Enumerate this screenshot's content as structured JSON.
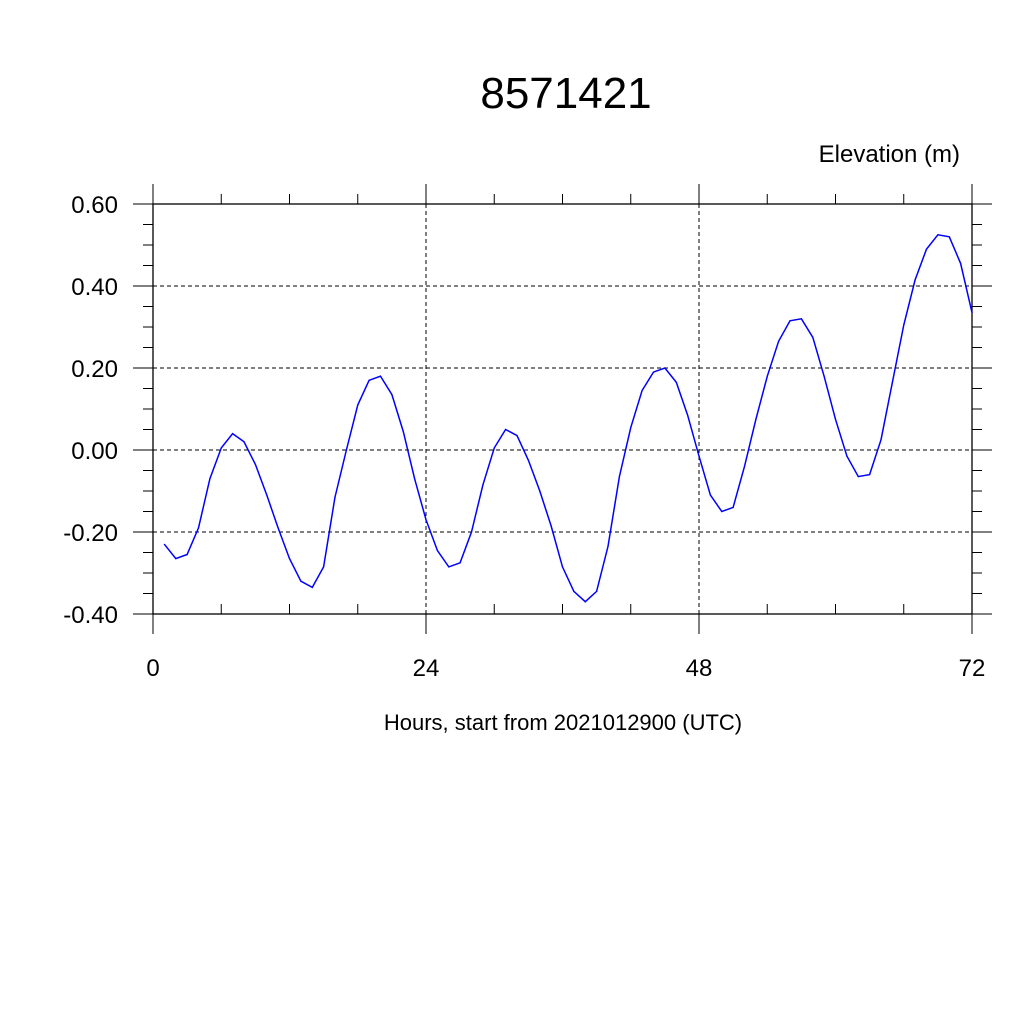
{
  "chart_data": {
    "type": "line",
    "title": "8571421",
    "ylabel": "Elevation (m)",
    "xlabel": "Hours, start from 2021012900 (UTC)",
    "xlim": [
      0,
      72
    ],
    "ylim": [
      -0.4,
      0.6
    ],
    "x_ticks": [
      0,
      24,
      48,
      72
    ],
    "x_tick_labels": [
      "0",
      "24",
      "48",
      "72"
    ],
    "y_ticks": [
      -0.4,
      -0.2,
      0.0,
      0.2,
      0.4,
      0.6
    ],
    "y_tick_labels": [
      "-0.40",
      "-0.20",
      "0.00",
      "0.20",
      "0.40",
      "0.60"
    ],
    "grid": true,
    "line_color": "#0000ff",
    "series": [
      {
        "x": [
          1,
          2,
          3,
          4,
          5,
          6,
          7,
          8,
          9,
          10,
          11,
          12,
          13,
          14,
          15,
          16,
          17,
          18,
          19,
          20,
          21,
          22,
          23,
          24,
          25,
          26,
          27,
          28,
          29,
          30,
          31,
          32,
          33,
          34,
          35,
          36,
          37,
          38,
          39,
          40,
          41,
          42,
          43,
          44,
          45,
          46,
          47,
          48,
          49,
          50,
          51,
          52,
          53,
          54,
          55,
          56,
          57,
          58,
          59,
          60,
          61,
          62,
          63,
          64,
          65,
          66,
          67,
          68,
          69,
          70,
          71,
          72
        ],
        "values": [
          -0.23,
          -0.265,
          -0.255,
          -0.19,
          -0.07,
          0.005,
          0.04,
          0.02,
          -0.035,
          -0.11,
          -0.19,
          -0.265,
          -0.32,
          -0.335,
          -0.285,
          -0.115,
          0,
          0.11,
          0.17,
          0.18,
          0.135,
          0.045,
          -0.07,
          -0.17,
          -0.245,
          -0.285,
          -0.275,
          -0.2,
          -0.085,
          0.005,
          0.05,
          0.035,
          -0.025,
          -0.1,
          -0.185,
          -0.285,
          -0.345,
          -0.37,
          -0.345,
          -0.235,
          -0.065,
          0.055,
          0.145,
          0.19,
          0.2,
          0.165,
          0.085,
          -0.015,
          -0.11,
          -0.15,
          -0.14,
          -0.04,
          0.075,
          0.18,
          0.265,
          0.315,
          0.32,
          0.275,
          0.18,
          0.075,
          -0.015,
          -0.065,
          -0.06,
          0.025,
          0.165,
          0.305,
          0.415,
          0.49,
          0.525,
          0.52,
          0.455,
          0.335
        ]
      }
    ]
  }
}
